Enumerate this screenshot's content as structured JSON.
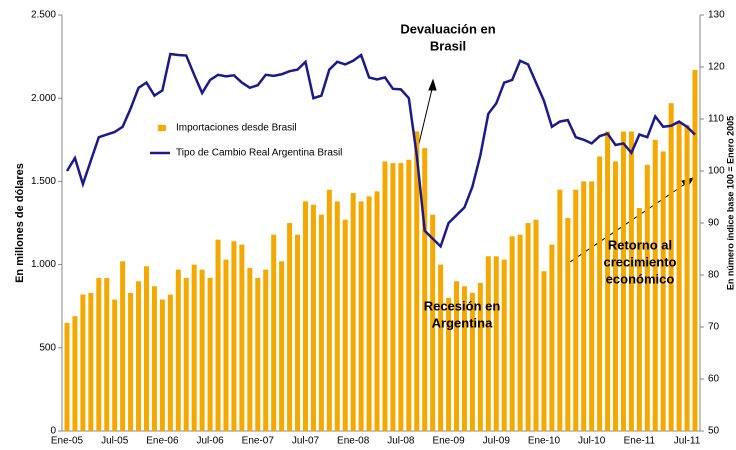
{
  "chart_data": {
    "type": "bar-line",
    "categories": [
      "Ene-05",
      null,
      null,
      null,
      null,
      null,
      "Jul-05",
      null,
      null,
      null,
      null,
      null,
      "Ene-06",
      null,
      null,
      null,
      null,
      null,
      "Jul-06",
      null,
      null,
      null,
      null,
      null,
      "Ene-07",
      null,
      null,
      null,
      null,
      null,
      "Jul-07",
      null,
      null,
      null,
      null,
      null,
      "Ene-08",
      null,
      null,
      null,
      null,
      null,
      "Jul-08",
      null,
      null,
      null,
      null,
      null,
      "Ene-09",
      null,
      null,
      null,
      null,
      null,
      "Jul-09",
      null,
      null,
      null,
      null,
      null,
      "Ene-10",
      null,
      null,
      null,
      null,
      null,
      "Jul-10",
      null,
      null,
      null,
      null,
      null,
      "Ene-11",
      null,
      null,
      null,
      null,
      null,
      "Jul-11",
      null
    ],
    "series": [
      {
        "name": "Importaciones desde Brasil",
        "type": "bar",
        "color": "#f5a800",
        "values": [
          650,
          690,
          820,
          830,
          920,
          920,
          790,
          1020,
          830,
          900,
          990,
          870,
          790,
          820,
          970,
          920,
          1000,
          970,
          920,
          1150,
          1030,
          1140,
          1120,
          980,
          920,
          970,
          1180,
          1020,
          1250,
          1180,
          1380,
          1360,
          1300,
          1450,
          1380,
          1270,
          1430,
          1380,
          1410,
          1440,
          1620,
          1610,
          1610,
          1630,
          1800,
          1700,
          1300,
          1000,
          800,
          900,
          870,
          830,
          890,
          1050,
          1050,
          1030,
          1170,
          1180,
          1250,
          1270,
          960,
          1120,
          1450,
          1280,
          1450,
          1500,
          1500,
          1650,
          1800,
          1620,
          1800,
          1800,
          1340,
          1600,
          1750,
          1680,
          1970,
          1850,
          1840,
          2170
        ]
      },
      {
        "name": "Tipo de Cambio Real Argentina Brasil",
        "type": "line",
        "axis": "y2",
        "color": "#1a1a8c",
        "values": [
          100,
          102.5,
          97.5,
          102,
          106.5,
          107,
          107.5,
          108.5,
          112,
          116,
          117,
          114.5,
          115.5,
          122.5,
          122.3,
          122.2,
          118.5,
          115,
          117.5,
          118.5,
          118.2,
          118.4,
          117,
          116,
          116.5,
          118.5,
          118.3,
          118.6,
          119.2,
          119.5,
          121,
          114,
          114.5,
          119.5,
          121,
          120.5,
          121.2,
          122.3,
          118,
          117.6,
          118,
          115.8,
          115.7,
          114,
          103,
          88.5,
          87,
          85.5,
          90,
          91.5,
          93,
          97,
          103,
          111,
          113,
          117,
          117.5,
          121.2,
          120.5,
          117,
          113.5,
          108.5,
          109.5,
          109.8,
          106.5,
          106,
          105.3,
          106.7,
          107.2,
          105,
          105.3,
          103.5,
          107,
          106.5,
          110.5,
          108.5,
          108.7,
          109.5,
          108.5,
          107
        ]
      }
    ],
    "ylim": [
      0,
      2500
    ],
    "yticks": [
      0,
      500,
      {
        "value": 1000,
        "label": "1.000"
      },
      {
        "value": 1500,
        "label": "1.500"
      },
      {
        "value": 2000,
        "label": "2.000"
      },
      {
        "value": 2500,
        "label": "2.500"
      }
    ],
    "y2lim": [
      50,
      130
    ],
    "y2ticks": [
      50,
      60,
      70,
      80,
      90,
      100,
      110,
      120,
      130
    ],
    "ylabel": "En millones de dólares",
    "y2label": "En número índice base 100 = Enero 2005",
    "grid": false,
    "legend": "upper left",
    "annotations": [
      [
        "Devaluación en",
        "Brasil"
      ],
      [
        "Recesión en",
        "Argentina"
      ],
      [
        "Retorno al",
        "crecimiento",
        "económico"
      ]
    ]
  }
}
